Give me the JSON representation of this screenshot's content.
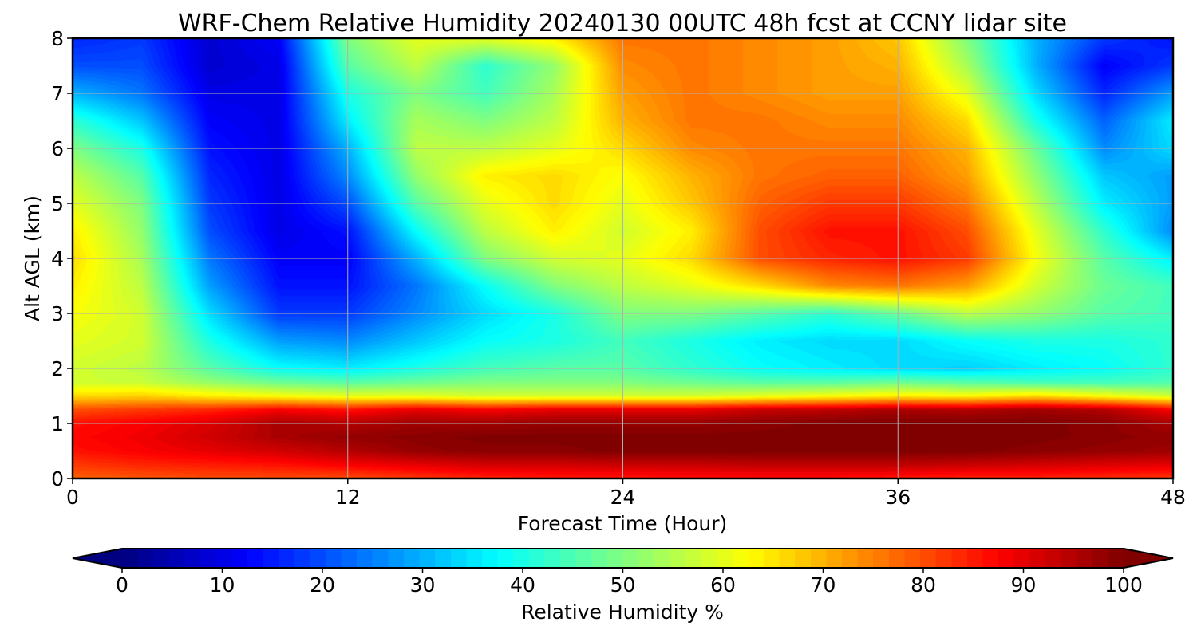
{
  "chart_data": {
    "type": "heatmap",
    "title": "WRF-Chem Relative Humidity 20240130 00UTC 48h fcst at CCNY lidar site",
    "xlabel": "Forecast Time (Hour)",
    "ylabel": "Alt AGL (km)",
    "xlim": [
      0,
      48
    ],
    "ylim": [
      0,
      8
    ],
    "xticks": [
      0,
      12,
      24,
      36,
      48
    ],
    "yticks": [
      0,
      1,
      2,
      3,
      4,
      5,
      6,
      7,
      8
    ],
    "grid": true,
    "colormap": "jet",
    "colorbar": {
      "label": "Relative Humidity %",
      "min": 0,
      "max": 100,
      "ticks": [
        0,
        10,
        20,
        30,
        40,
        50,
        60,
        70,
        80,
        90,
        100
      ],
      "extend": "both",
      "orientation": "horizontal"
    },
    "x": [
      0,
      3,
      6,
      9,
      12,
      15,
      18,
      21,
      24,
      27,
      30,
      33,
      36,
      39,
      42,
      45,
      48
    ],
    "y": [
      0,
      0.25,
      0.5,
      0.75,
      1.0,
      1.25,
      1.5,
      1.75,
      2.0,
      2.5,
      3.0,
      3.5,
      4.0,
      4.5,
      5.0,
      5.5,
      6.0,
      6.5,
      7.0,
      7.5,
      8.0
    ],
    "z": [
      [
        78,
        79,
        80,
        80,
        80,
        82,
        84,
        85,
        85,
        86,
        86,
        86,
        85,
        84,
        84,
        83,
        82
      ],
      [
        82,
        84,
        85,
        86,
        88,
        90,
        92,
        92,
        93,
        93,
        94,
        94,
        94,
        93,
        92,
        91,
        90
      ],
      [
        86,
        88,
        90,
        92,
        95,
        98,
        99,
        99,
        100,
        100,
        100,
        100,
        100,
        100,
        99,
        98,
        97
      ],
      [
        87,
        89,
        92,
        96,
        98,
        99,
        100,
        100,
        100,
        100,
        100,
        100,
        100,
        100,
        100,
        99,
        98
      ],
      [
        86,
        88,
        91,
        96,
        95,
        97,
        97,
        98,
        98,
        98,
        99,
        100,
        100,
        100,
        100,
        99,
        96
      ],
      [
        80,
        82,
        84,
        88,
        86,
        90,
        88,
        90,
        90,
        90,
        93,
        94,
        96,
        95,
        97,
        95,
        88
      ],
      [
        66,
        67,
        64,
        62,
        60,
        60,
        58,
        58,
        58,
        58,
        60,
        62,
        64,
        63,
        66,
        62,
        58
      ],
      [
        58,
        57,
        52,
        48,
        46,
        48,
        50,
        50,
        50,
        48,
        46,
        46,
        48,
        46,
        44,
        44,
        45
      ],
      [
        58,
        56,
        46,
        38,
        36,
        40,
        44,
        46,
        46,
        42,
        38,
        36,
        34,
        33,
        36,
        38,
        42
      ],
      [
        60,
        58,
        40,
        28,
        26,
        32,
        38,
        40,
        44,
        40,
        36,
        34,
        34,
        38,
        40,
        40,
        42
      ],
      [
        62,
        58,
        34,
        18,
        18,
        26,
        34,
        40,
        50,
        50,
        46,
        42,
        48,
        56,
        52,
        46,
        44
      ],
      [
        64,
        56,
        28,
        14,
        14,
        24,
        38,
        50,
        56,
        60,
        66,
        74,
        76,
        72,
        58,
        48,
        44
      ],
      [
        66,
        54,
        24,
        12,
        12,
        30,
        50,
        58,
        60,
        66,
        80,
        84,
        86,
        82,
        62,
        46,
        36
      ],
      [
        64,
        52,
        20,
        10,
        14,
        38,
        56,
        64,
        58,
        64,
        80,
        86,
        86,
        80,
        60,
        42,
        26
      ],
      [
        60,
        50,
        18,
        10,
        20,
        46,
        60,
        66,
        60,
        68,
        78,
        82,
        82,
        76,
        56,
        36,
        28
      ],
      [
        56,
        46,
        16,
        10,
        26,
        52,
        64,
        66,
        62,
        70,
        76,
        78,
        78,
        72,
        52,
        32,
        28
      ],
      [
        50,
        40,
        14,
        10,
        30,
        56,
        56,
        60,
        66,
        74,
        76,
        76,
        76,
        70,
        48,
        26,
        34
      ],
      [
        42,
        32,
        12,
        10,
        36,
        54,
        50,
        56,
        70,
        76,
        76,
        74,
        74,
        66,
        40,
        22,
        36
      ],
      [
        30,
        24,
        10,
        10,
        40,
        50,
        44,
        54,
        72,
        76,
        74,
        72,
        72,
        60,
        34,
        16,
        28
      ],
      [
        20,
        20,
        8,
        10,
        46,
        56,
        42,
        52,
        74,
        76,
        74,
        72,
        70,
        54,
        30,
        12,
        18
      ],
      [
        16,
        18,
        8,
        12,
        50,
        60,
        60,
        64,
        76,
        76,
        74,
        72,
        68,
        50,
        30,
        18,
        14
      ]
    ]
  }
}
